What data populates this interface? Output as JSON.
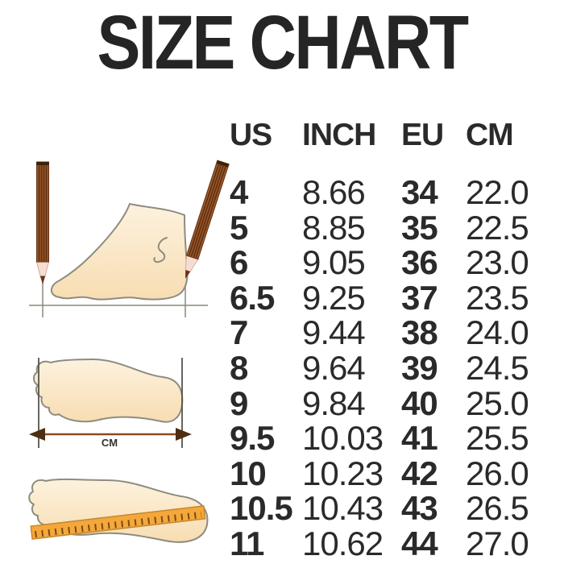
{
  "chart_data": {
    "type": "table",
    "title": "SIZE CHART",
    "columns": [
      "US",
      "INCH",
      "EU",
      "CM"
    ],
    "rows": [
      [
        "4",
        "8.66",
        "34",
        "22.0"
      ],
      [
        "5",
        "8.85",
        "35",
        "22.5"
      ],
      [
        "6",
        "9.05",
        "36",
        "23.0"
      ],
      [
        "6.5",
        "9.25",
        "37",
        "23.5"
      ],
      [
        "7",
        "9.44",
        "38",
        "24.0"
      ],
      [
        "8",
        "9.64",
        "39",
        "24.5"
      ],
      [
        "9",
        "9.84",
        "40",
        "25.0"
      ],
      [
        "9.5",
        "10.03",
        "41",
        "25.5"
      ],
      [
        "10",
        "10.23",
        "42",
        "26.0"
      ],
      [
        "10.5",
        "10.43",
        "43",
        "26.5"
      ],
      [
        "11",
        "10.62",
        "44",
        "27.0"
      ]
    ]
  },
  "illustrations": {
    "length_arrow_label": "CM"
  },
  "colors": {
    "text": "#2a2a2a",
    "background": "#ffffff",
    "foot_fill_light": "#fdf2de",
    "foot_fill_dark": "#f7ddb2",
    "outline_gray": "#8e8c80",
    "pencil_brown": "#9c5a2b",
    "pencil_stripe": "#5f2f10",
    "ruler_orange": "#f4a83b",
    "arrow_brown": "#7a421f"
  }
}
